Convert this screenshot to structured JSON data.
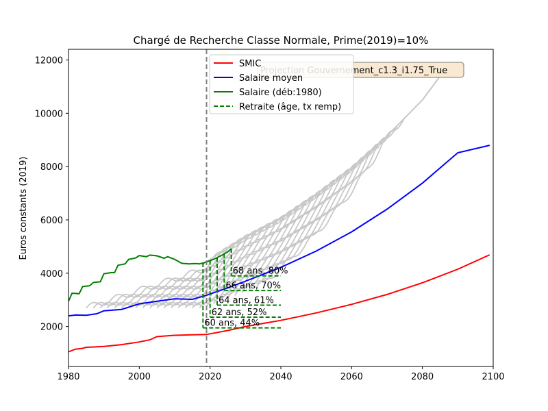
{
  "chart_data": {
    "type": "line",
    "title": "Chargé de Recherche Classe Normale, Prime(2019)=10%",
    "xlabel": "",
    "ylabel": "Euros constants (2019)",
    "xlim": [
      1980,
      2100
    ],
    "ylim": [
      500,
      12400
    ],
    "x_ticks": [
      1980,
      2000,
      2020,
      2040,
      2060,
      2080,
      2100
    ],
    "y_ticks": [
      2000,
      4000,
      6000,
      8000,
      10000,
      12000
    ],
    "x_tick_labels": [
      "1980",
      "2000",
      "2020",
      "2040",
      "2060",
      "2080",
      "2100"
    ],
    "y_tick_labels": [
      "2000",
      "4000",
      "6000",
      "8000",
      "10000",
      "12000"
    ],
    "vline_x": 2019,
    "projection_box": "Projection Gouvernement_c1.3_i1.75_True",
    "legend_position": "top-center",
    "legend": [
      {
        "label": "SMIC",
        "color": "#ff0000",
        "style": "solid"
      },
      {
        "label": "Salaire moyen",
        "color": "#0000ff",
        "style": "solid"
      },
      {
        "label": "Salaire (déb:1980)",
        "color": "#008000",
        "style": "solid"
      },
      {
        "label": "Retraite (âge, tx remp)",
        "color": "#008000",
        "style": "dashed"
      }
    ],
    "series": [
      {
        "name": "SMIC",
        "color": "#ff0000",
        "points": [
          [
            1980,
            1050
          ],
          [
            1982,
            1150
          ],
          [
            1984,
            1180
          ],
          [
            1985,
            1220
          ],
          [
            1990,
            1250
          ],
          [
            1995,
            1320
          ],
          [
            2000,
            1420
          ],
          [
            2003,
            1500
          ],
          [
            2005,
            1620
          ],
          [
            2010,
            1670
          ],
          [
            2015,
            1690
          ],
          [
            2019,
            1700
          ],
          [
            2025,
            1850
          ],
          [
            2030,
            2000
          ],
          [
            2040,
            2230
          ],
          [
            2050,
            2510
          ],
          [
            2060,
            2830
          ],
          [
            2070,
            3200
          ],
          [
            2080,
            3640
          ],
          [
            2090,
            4150
          ],
          [
            2099,
            4690
          ]
        ]
      },
      {
        "name": "Salaire moyen",
        "color": "#0000ff",
        "points": [
          [
            1980,
            2400
          ],
          [
            1982,
            2430
          ],
          [
            1985,
            2420
          ],
          [
            1988,
            2480
          ],
          [
            1990,
            2590
          ],
          [
            1995,
            2640
          ],
          [
            2000,
            2850
          ],
          [
            2005,
            2950
          ],
          [
            2010,
            3040
          ],
          [
            2015,
            3020
          ],
          [
            2019,
            3170
          ],
          [
            2025,
            3450
          ],
          [
            2030,
            3700
          ],
          [
            2040,
            4220
          ],
          [
            2050,
            4830
          ],
          [
            2060,
            5550
          ],
          [
            2070,
            6400
          ],
          [
            2080,
            7380
          ],
          [
            2090,
            8520
          ],
          [
            2099,
            8800
          ]
        ]
      },
      {
        "name": "Salaire (déb:1980)",
        "color": "#008000",
        "points": [
          [
            1980,
            2950
          ],
          [
            1981,
            3250
          ],
          [
            1983,
            3230
          ],
          [
            1984,
            3500
          ],
          [
            1986,
            3530
          ],
          [
            1987,
            3650
          ],
          [
            1989,
            3680
          ],
          [
            1990,
            3980
          ],
          [
            1992,
            4020
          ],
          [
            1993,
            4020
          ],
          [
            1994,
            4300
          ],
          [
            1996,
            4350
          ],
          [
            1997,
            4520
          ],
          [
            1999,
            4570
          ],
          [
            2000,
            4660
          ],
          [
            2002,
            4620
          ],
          [
            2003,
            4680
          ],
          [
            2005,
            4650
          ],
          [
            2007,
            4560
          ],
          [
            2008,
            4620
          ],
          [
            2010,
            4520
          ],
          [
            2012,
            4370
          ],
          [
            2014,
            4350
          ],
          [
            2016,
            4360
          ],
          [
            2017,
            4350
          ],
          [
            2018,
            4380
          ],
          [
            2019,
            4420
          ],
          [
            2021,
            4520
          ],
          [
            2023,
            4650
          ],
          [
            2025,
            4800
          ],
          [
            2026,
            4920
          ]
        ]
      }
    ],
    "grey_curves_count": 25,
    "grey_envelope": [
      [
        2018,
        4350
      ],
      [
        2030,
        5350
      ],
      [
        2040,
        6050
      ],
      [
        2050,
        6950
      ],
      [
        2060,
        7950
      ],
      [
        2070,
        9150
      ],
      [
        2080,
        10500
      ],
      [
        2087,
        11750
      ]
    ],
    "retirements": [
      {
        "age_label": "60 ans, 44%",
        "x": 2018,
        "value": 1950
      },
      {
        "age_label": "62 ans, 52%",
        "x": 2020,
        "value": 2350
      },
      {
        "age_label": "64 ans, 61%",
        "x": 2022,
        "value": 2800
      },
      {
        "age_label": "66 ans, 70%",
        "x": 2024,
        "value": 3350
      },
      {
        "age_label": "68 ans, 80%",
        "x": 2026,
        "value": 3900
      }
    ],
    "retirement_end_x": 2040
  }
}
